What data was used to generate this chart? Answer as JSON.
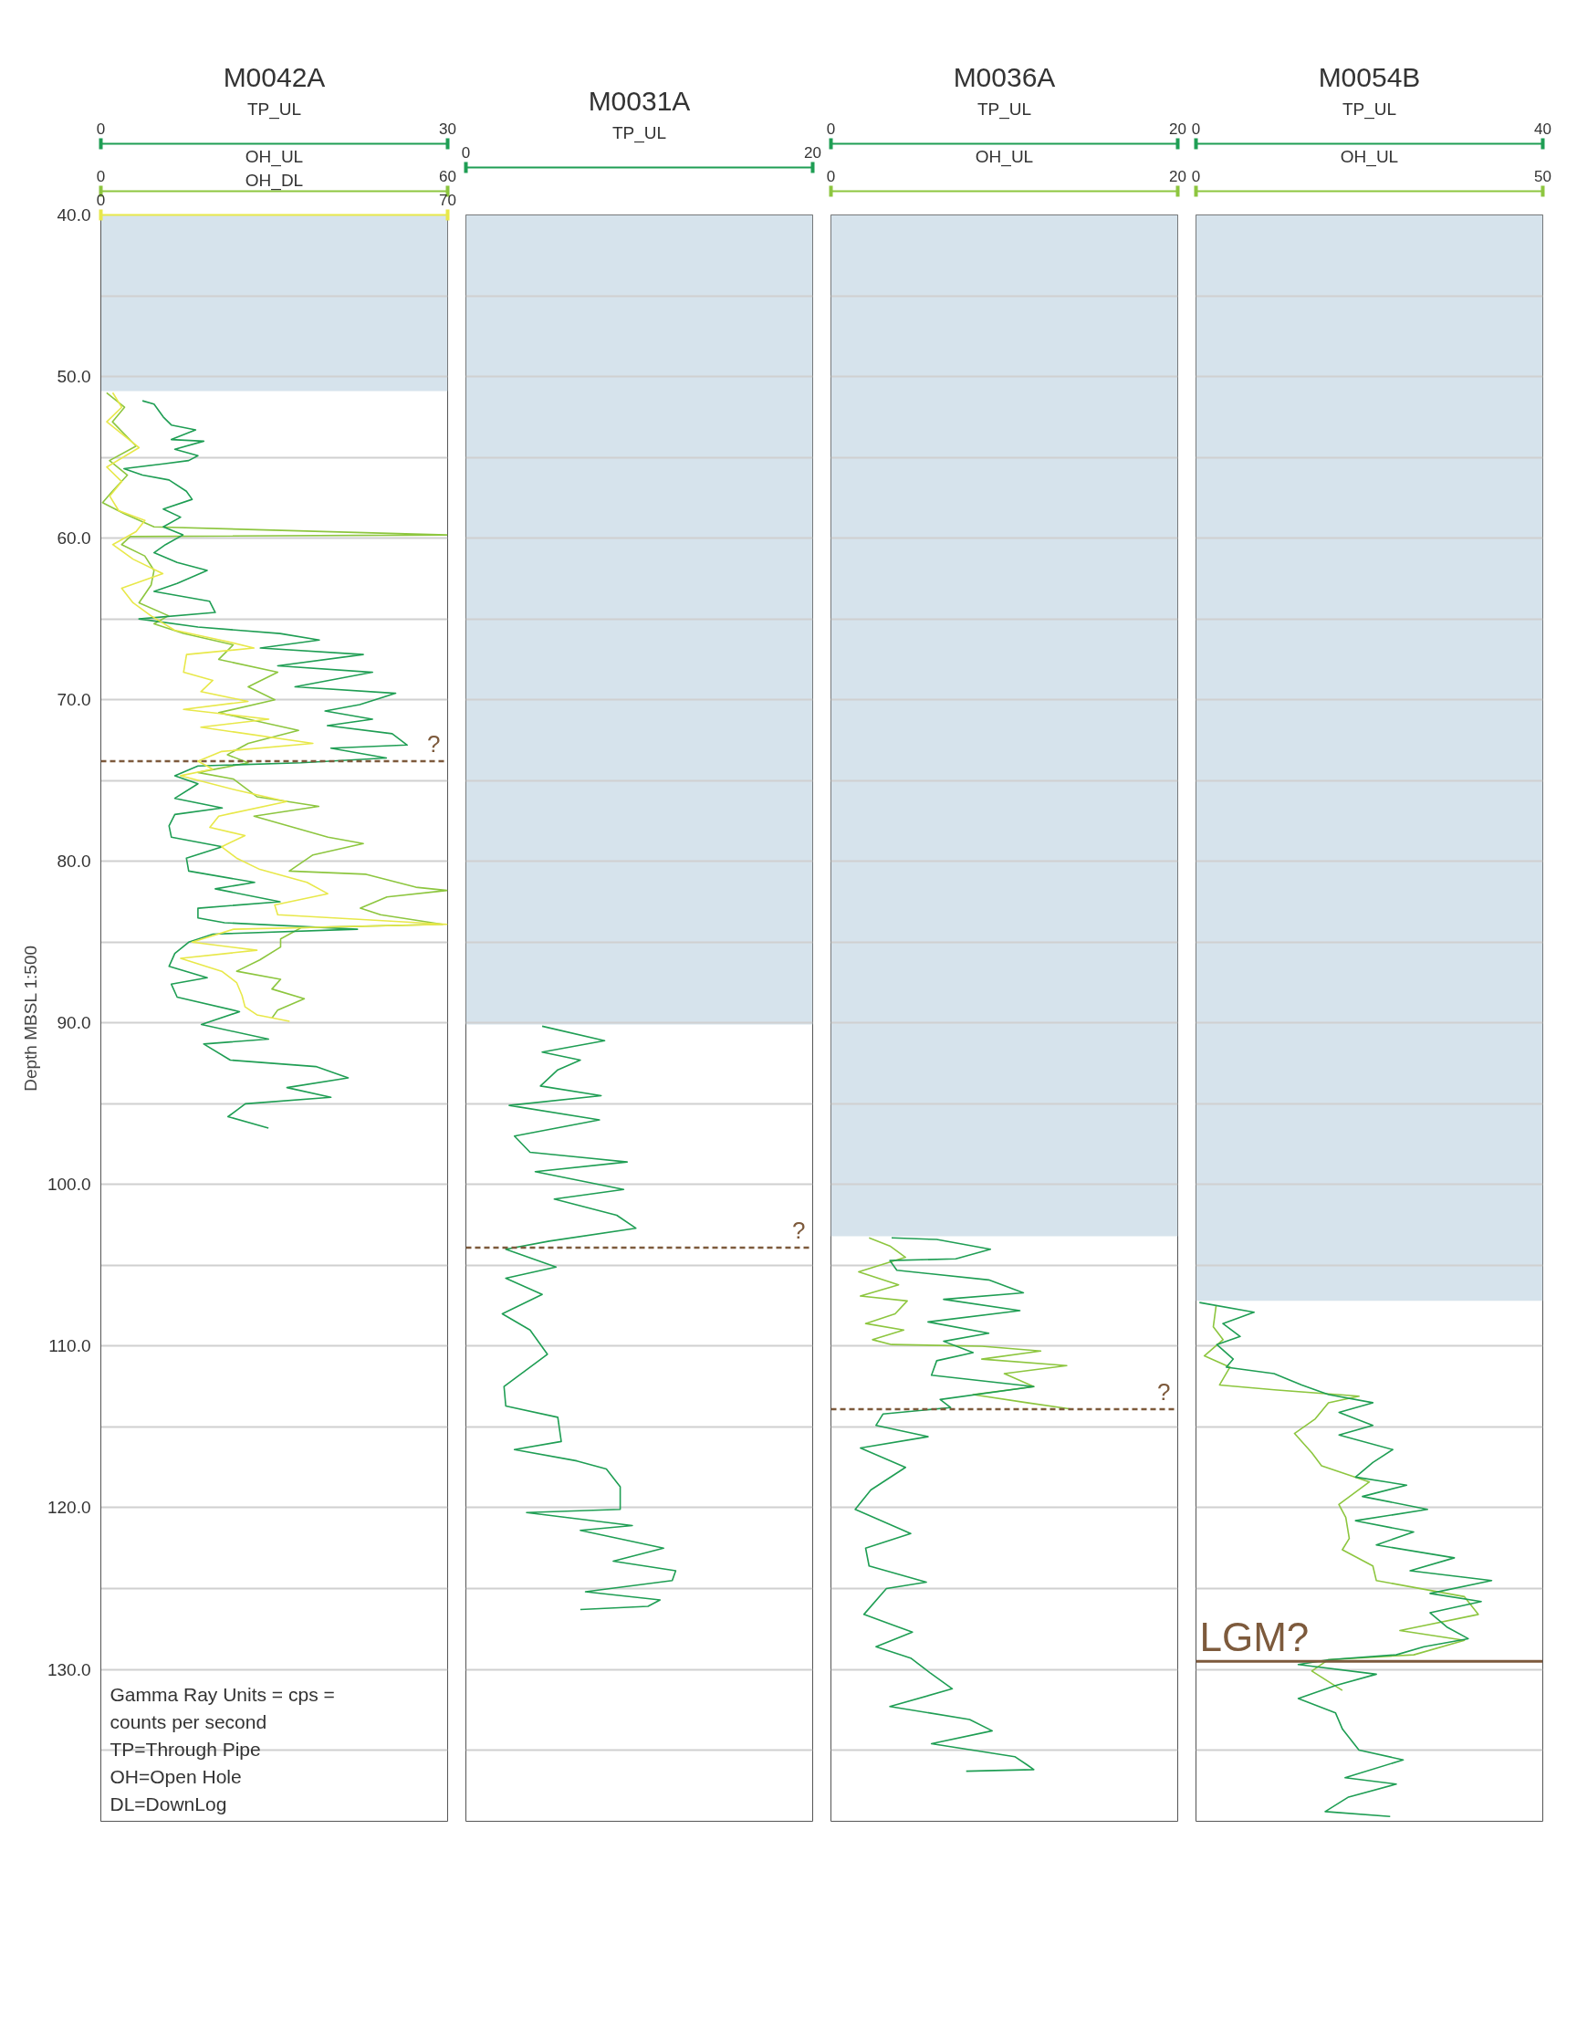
{
  "chart_data": [
    {
      "type": "line",
      "title": "M0042A",
      "ylabel": "Depth MBSL 1:500",
      "xlabel": "TP_UL",
      "xlim": [
        0,
        30
      ],
      "xticks": [
        0,
        30
      ],
      "x2label": "OH_UL",
      "x2lim": [
        0,
        60
      ],
      "x2ticks": [
        0,
        60
      ],
      "ylim": [
        139.4,
        40
      ],
      "yticks": [
        {
          "value": 40,
          "label": "40.0"
        },
        {
          "value": 45,
          "label": null
        },
        {
          "value": 50,
          "label": "50.0"
        },
        {
          "value": 55,
          "label": null
        },
        {
          "value": 60,
          "label": "60.0"
        },
        {
          "value": 65,
          "label": null
        },
        {
          "value": 70,
          "label": "70.0"
        },
        {
          "value": 75,
          "label": null
        },
        {
          "value": 80,
          "label": "80.0"
        },
        {
          "value": 85,
          "label": null
        },
        {
          "value": 90,
          "label": "90.0"
        },
        {
          "value": 95,
          "label": null
        },
        {
          "value": 100,
          "label": "100.0"
        },
        {
          "value": 105,
          "label": null
        },
        {
          "value": 110,
          "label": "110.0"
        },
        {
          "value": 115,
          "label": null
        },
        {
          "value": 120,
          "label": "120.0"
        },
        {
          "value": 125,
          "label": null
        },
        {
          "value": 130,
          "label": "130.0"
        },
        {
          "value": 135,
          "label": null
        }
      ],
      "grid": "y",
      "bands": [
        {
          "axis": "y",
          "from": 40,
          "to": 50.9,
          "color": "#d6e3ec"
        }
      ],
      "ref_lines": [
        {
          "axis": "y",
          "value": 73.8,
          "label": "?",
          "color": "#7d5a3c",
          "line_style": "dashed"
        }
      ],
      "annotations": [
        "Gamma Ray Units = cps = counts per second",
        "TP=Through Pipe",
        "OH=Open Hole",
        "DL=DownLog"
      ],
      "series": [
        {
          "axis": "x2",
          "color": "#8dc63f",
          "x": [
            1.0,
            4.1,
            2.0,
            6.1,
            1.5,
            4.6,
            2.0,
            0.3,
            4.1,
            9.2,
            59.9,
            5.1,
            3.6,
            7.6,
            9.2,
            8.7,
            6.6,
            11.7,
            9.2,
            14.3,
            22.9,
            20.4,
            30.6,
            25.5,
            30.1,
            20.4,
            34.2,
            25.5,
            21.9,
            25.5,
            16.8,
            22.9,
            27.0,
            37.7,
            26.5,
            39.3,
            45.4,
            36.7,
            32.6,
            45.9,
            54.5,
            59.9,
            49.5,
            44.9,
            48.4,
            59.1,
            34.7,
            31.1,
            31.1,
            27.5,
            23.5,
            31.1,
            29.6,
            35.2,
            30.6,
            29.6
          ],
          "values": [
            51.0,
            51.9,
            52.8,
            54.3,
            55.2,
            56.1,
            57.1,
            57.8,
            58.5,
            59.3,
            59.8,
            59.9,
            60.4,
            61.1,
            62.0,
            62.9,
            64.0,
            64.8,
            65.3,
            65.9,
            66.6,
            67.5,
            68.3,
            69.2,
            70.0,
            70.8,
            71.9,
            72.7,
            73.4,
            73.9,
            74.5,
            74.9,
            76.0,
            76.6,
            77.2,
            78.5,
            78.9,
            79.6,
            80.6,
            80.8,
            81.6,
            81.8,
            82.2,
            82.9,
            83.3,
            83.9,
            84.1,
            84.8,
            85.3,
            86.1,
            86.8,
            87.3,
            87.9,
            88.5,
            89.2,
            89.7
          ]
        },
        {
          "color": "#1f9e54",
          "x": [
            3.6,
            4.6,
            5.4,
            6.1,
            8.2,
            6.1,
            8.9,
            6.4,
            8.4,
            7.6,
            5.4,
            2.0,
            3.6,
            5.9,
            7.4,
            7.9,
            5.4,
            6.9,
            5.4,
            7.1,
            5.6,
            4.6,
            6.6,
            9.2,
            6.6,
            4.6,
            9.4,
            9.9,
            3.3,
            8.4,
            15.5,
            18.9,
            13.8,
            22.7,
            15.3,
            23.5,
            16.8,
            25.5,
            22.4,
            19.4,
            23.5,
            19.6,
            25.2,
            26.5,
            19.9,
            24.7,
            17.3,
            8.4,
            6.4,
            8.4,
            6.4,
            10.5,
            6.4,
            5.9,
            6.1,
            10.5,
            7.4,
            7.6,
            13.3,
            9.9,
            15.5,
            8.4,
            8.4,
            10.7,
            22.2,
            9.7,
            7.6,
            6.4,
            5.9,
            9.2,
            6.1,
            6.6,
            12.0,
            8.7,
            14.5,
            8.9,
            11.2,
            18.6,
            21.4,
            16.1,
            19.9,
            12.5,
            11.0,
            14.5
          ],
          "values": [
            51.5,
            51.7,
            52.5,
            53.0,
            53.3,
            53.9,
            54.0,
            54.5,
            54.9,
            55.2,
            55.4,
            55.7,
            56.1,
            56.4,
            57.1,
            57.6,
            58.2,
            58.7,
            59.3,
            59.8,
            60.4,
            60.9,
            61.5,
            62.0,
            62.8,
            63.3,
            63.9,
            64.6,
            65.0,
            65.5,
            65.9,
            66.3,
            66.8,
            67.2,
            67.9,
            68.3,
            69.2,
            69.6,
            70.3,
            70.7,
            71.2,
            71.6,
            72.1,
            72.8,
            73.0,
            73.6,
            73.9,
            74.1,
            74.7,
            75.2,
            76.1,
            76.7,
            77.1,
            77.8,
            78.5,
            79.1,
            79.8,
            80.6,
            81.3,
            81.7,
            82.5,
            82.9,
            83.5,
            83.8,
            84.2,
            84.5,
            85.0,
            85.7,
            86.5,
            87.2,
            87.6,
            88.4,
            89.3,
            90.1,
            91.0,
            91.3,
            92.3,
            92.7,
            93.4,
            94.0,
            94.6,
            95.0,
            95.8,
            96.5
          ]
        }
      ]
    },
    {
      "type": "line",
      "xlabel": "OH_DL",
      "xlim": [
        0,
        70
      ],
      "xticks": [
        0,
        70
      ],
      "ylim": [
        139.4,
        40
      ],
      "tick_labels": "x",
      "series": [
        {
          "color": "#e8e84a",
          "x": [
            2.4,
            4.2,
            1.2,
            7.7,
            1.2,
            4.2,
            1.8,
            3.6,
            8.9,
            7.1,
            2.4,
            6.5,
            12.5,
            4.2,
            6.5,
            10.1,
            14.9,
            25.6,
            30.9,
            17.3,
            16.7,
            22.6,
            20.2,
            29.7,
            16.7,
            33.9,
            20.2,
            42.8,
            24.4,
            19.6,
            22.6,
            16.1,
            27.4,
            37.5,
            23.8,
            22.0,
            29.1,
            24.4,
            27.4,
            32.1,
            41.6,
            45.8,
            35.1,
            35.7,
            69.9,
            26.8,
            18.4,
            31.5,
            16.1,
            24.4,
            27.4,
            28.5,
            29.1,
            31.5,
            38.1
          ],
          "values": [
            51.0,
            51.9,
            52.8,
            54.4,
            55.6,
            56.5,
            57.4,
            58.3,
            58.9,
            59.6,
            60.4,
            61.3,
            62.2,
            63.1,
            64.0,
            64.8,
            65.7,
            66.4,
            66.8,
            67.2,
            68.3,
            68.8,
            69.5,
            70.1,
            70.6,
            71.2,
            71.7,
            72.7,
            73.2,
            73.8,
            74.3,
            74.7,
            75.6,
            76.3,
            77.2,
            77.9,
            78.4,
            79.1,
            79.8,
            80.5,
            81.3,
            82.0,
            82.7,
            83.3,
            83.9,
            84.2,
            85.0,
            85.5,
            86.0,
            86.8,
            87.5,
            88.3,
            89.0,
            89.5,
            89.9
          ]
        }
      ]
    },
    {
      "type": "line",
      "title": "M0031A",
      "xlabel": "TP_UL",
      "xlim": [
        0,
        20
      ],
      "xticks": [
        0,
        20
      ],
      "ylim": [
        139.4,
        40
      ],
      "tick_labels": "x",
      "yticks": [
        40,
        45,
        50,
        55,
        60,
        65,
        70,
        75,
        80,
        85,
        90,
        95,
        100,
        105,
        110,
        115,
        120,
        125,
        130,
        135
      ],
      "grid": "y",
      "bands": [
        {
          "axis": "y",
          "from": 40,
          "to": 90.1,
          "color": "#d6e3ec"
        }
      ],
      "ref_lines": [
        {
          "axis": "y",
          "value": 103.9,
          "label": "?",
          "color": "#7d5a3c",
          "line_style": "dashed"
        }
      ],
      "series": [
        {
          "color": "#1f9e54",
          "x": [
            4.4,
            8.0,
            4.4,
            6.6,
            5.3,
            4.3,
            7.8,
            2.5,
            7.7,
            2.8,
            3.7,
            9.3,
            4.0,
            9.1,
            5.1,
            8.7,
            9.8,
            4.8,
            2.3,
            5.2,
            2.3,
            4.4,
            2.1,
            3.7,
            4.7,
            2.2,
            2.3,
            5.3,
            5.5,
            2.8,
            6.4,
            8.1,
            8.9,
            8.9,
            3.5,
            9.6,
            6.6,
            11.4,
            8.5,
            12.1,
            11.9,
            6.9,
            11.2,
            10.5,
            6.6
          ],
          "values": [
            90.2,
            91.1,
            91.8,
            92.3,
            92.9,
            93.9,
            94.5,
            95.1,
            96.0,
            97.0,
            98.0,
            98.6,
            99.2,
            100.3,
            100.9,
            101.9,
            102.7,
            103.5,
            104.0,
            105.1,
            105.8,
            106.8,
            108.0,
            109.0,
            110.5,
            112.5,
            113.7,
            114.4,
            115.9,
            116.4,
            117.1,
            117.6,
            118.7,
            120.1,
            120.3,
            121.1,
            121.4,
            122.5,
            123.3,
            123.9,
            124.5,
            125.2,
            125.7,
            126.1,
            126.3
          ]
        }
      ]
    },
    {
      "type": "line",
      "title": "M0036A",
      "xlabel": "TP_UL",
      "xlim": [
        0,
        20
      ],
      "xticks": [
        0,
        20
      ],
      "x2label": "OH_UL",
      "x2lim": [
        0,
        20
      ],
      "x2ticks": [
        0,
        20
      ],
      "ylim": [
        139.4,
        40
      ],
      "tick_labels": "x",
      "yticks": [
        40,
        45,
        50,
        55,
        60,
        65,
        70,
        75,
        80,
        85,
        90,
        95,
        100,
        105,
        110,
        115,
        120,
        125,
        130,
        135
      ],
      "grid": "y",
      "bands": [
        {
          "axis": "y",
          "from": 40,
          "to": 103.2,
          "color": "#d6e3ec"
        }
      ],
      "ref_lines": [
        {
          "axis": "y",
          "value": 113.9,
          "label": "?",
          "color": "#7d5a3c",
          "line_style": "dashed"
        }
      ],
      "series": [
        {
          "axis": "x2",
          "color": "#8dc63f",
          "x": [
            2.2,
            3.4,
            4.3,
            1.6,
            3.9,
            1.7,
            4.4,
            3.7,
            2.0,
            4.2,
            2.4,
            3.5,
            8.7,
            12.1,
            8.7,
            13.6,
            10.0,
            11.7,
            8.2,
            11.3,
            13.9
          ],
          "values": [
            103.3,
            103.8,
            104.5,
            105.4,
            106.2,
            106.9,
            107.2,
            108.0,
            108.6,
            109.0,
            109.6,
            109.9,
            110.0,
            110.3,
            110.8,
            111.2,
            111.7,
            112.5,
            113.0,
            113.5,
            113.9
          ]
        },
        {
          "color": "#1f9e54",
          "x": [
            3.5,
            6.1,
            9.2,
            7.2,
            3.4,
            3.8,
            9.1,
            11.1,
            6.5,
            10.9,
            5.6,
            9.1,
            6.5,
            8.2,
            6.1,
            5.8,
            11.7,
            6.3,
            6.9,
            3.0,
            2.6,
            5.6,
            1.7,
            4.3,
            2.3,
            1.4,
            4.6,
            2.0,
            2.2,
            5.5,
            3.2,
            1.9,
            4.7,
            2.6,
            4.6,
            5.7,
            7.0,
            3.4,
            8.0,
            9.3,
            5.8,
            10.6,
            11.3,
            11.7,
            7.8
          ],
          "values": [
            103.3,
            103.4,
            104.0,
            104.6,
            104.7,
            105.3,
            105.9,
            106.7,
            107.1,
            107.8,
            108.5,
            109.2,
            109.7,
            110.4,
            110.9,
            111.8,
            112.5,
            113.3,
            113.8,
            114.2,
            114.9,
            115.6,
            116.3,
            117.5,
            118.9,
            120.1,
            121.6,
            122.5,
            123.6,
            124.6,
            125.0,
            126.6,
            127.7,
            128.6,
            129.3,
            130.2,
            131.2,
            132.3,
            133.1,
            133.8,
            134.6,
            135.4,
            135.9,
            136.2,
            136.3
          ]
        }
      ]
    },
    {
      "type": "line",
      "title": "M0054B",
      "xlabel": "TP_UL",
      "xlim": [
        0,
        40
      ],
      "xticks": [
        0,
        40
      ],
      "x2label": "OH_UL",
      "x2lim": [
        0,
        50
      ],
      "x2ticks": [
        0,
        50
      ],
      "ylim": [
        139.4,
        40
      ],
      "tick_labels": "x",
      "yticks": [
        40,
        45,
        50,
        55,
        60,
        65,
        70,
        75,
        80,
        85,
        90,
        95,
        100,
        105,
        110,
        115,
        120,
        125,
        130,
        135
      ],
      "grid": "y",
      "bands": [
        {
          "axis": "y",
          "from": 40,
          "to": 107.2,
          "color": "#d6e3ec"
        }
      ],
      "ref_lines": [
        {
          "axis": "y",
          "value": 129.5,
          "label": "LGM?",
          "color": "#7d5a3c",
          "line_style": "solid"
        }
      ],
      "series": [
        {
          "axis": "x2",
          "color": "#8dc63f",
          "x": [
            2.9,
            2.5,
            3.9,
            1.2,
            4.9,
            3.4,
            11.3,
            23.5,
            19.1,
            17.2,
            14.2,
            16.7,
            18.1,
            25.0,
            20.6,
            21.6,
            22.1,
            21.1,
            25.5,
            26.0,
            38.7,
            40.7,
            29.4,
            38.7,
            31.4,
            19.1,
            16.7,
            21.1
          ],
          "values": [
            107.5,
            108.8,
            109.6,
            110.6,
            111.3,
            112.4,
            112.7,
            113.1,
            113.5,
            114.5,
            115.4,
            116.6,
            117.4,
            118.4,
            119.8,
            120.6,
            121.9,
            122.6,
            123.6,
            124.5,
            125.5,
            126.6,
            127.6,
            128.2,
            129.1,
            129.4,
            130.1,
            131.3
          ]
        },
        {
          "color": "#1f9e54",
          "x": [
            0.4,
            6.7,
            3.1,
            5.1,
            2.4,
            4.3,
            3.5,
            9.0,
            12.2,
            15.3,
            20.4,
            16.5,
            20.4,
            16.5,
            22.7,
            20.4,
            18.4,
            24.3,
            19.2,
            26.7,
            18.4,
            25.1,
            20.8,
            29.8,
            24.7,
            34.1,
            27.0,
            32.9,
            27.0,
            29.0,
            31.4,
            26.3,
            23.1,
            15.3,
            11.8,
            20.8,
            16.1,
            11.8,
            16.1,
            16.9,
            18.8,
            23.9,
            17.2,
            23.1,
            17.6,
            14.9,
            22.4
          ],
          "values": [
            107.3,
            107.9,
            108.6,
            109.4,
            109.9,
            110.8,
            111.3,
            111.7,
            112.4,
            113.0,
            113.5,
            114.1,
            114.9,
            115.5,
            116.4,
            117.2,
            118.1,
            118.6,
            119.3,
            120.1,
            120.8,
            121.5,
            122.3,
            123.1,
            123.9,
            124.5,
            125.3,
            125.8,
            126.5,
            127.4,
            128.1,
            128.6,
            129.1,
            129.4,
            129.7,
            130.3,
            131.0,
            131.8,
            132.7,
            133.7,
            135.0,
            135.6,
            136.7,
            137.1,
            137.9,
            138.8,
            139.1
          ]
        }
      ]
    }
  ]
}
